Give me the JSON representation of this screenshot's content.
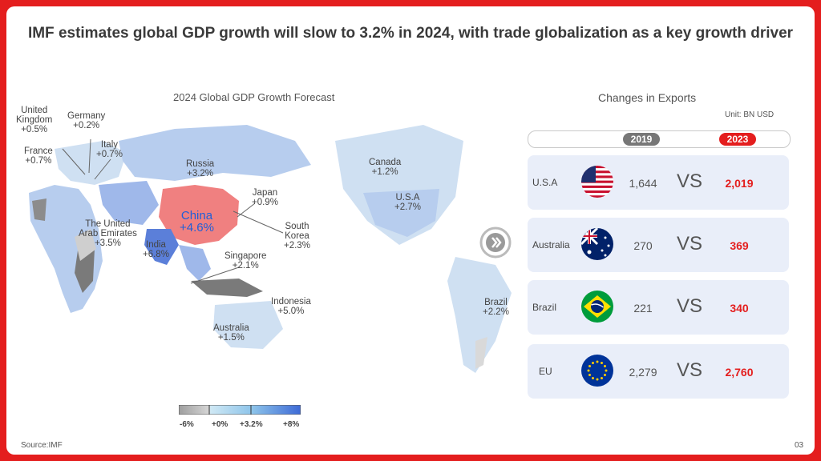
{
  "headline": "IMF estimates global GDP growth will slow to 3.2% in 2024, with trade globalization as a key growth driver",
  "map": {
    "title": "2024 Global GDP Growth Forecast",
    "labels": {
      "uk": "United\nKingdom\n+0.5%",
      "germany": "Germany\n+0.2%",
      "france": "France\n+0.7%",
      "italy": "Italy\n+0.7%",
      "russia": "Russia\n+3.2%",
      "japan": "Japan\n+0.9%",
      "china": "China\n+4.6%",
      "uae": "The United\nArab Emirates\n+3.5%",
      "india": "India\n+6.8%",
      "south_korea": "South\nKorea\n+2.3%",
      "singapore": "Singapore\n+2.1%",
      "indonesia": "Indonesia\n+5.0%",
      "australia": "Australia\n+1.5%",
      "canada": "Canada\n+1.2%",
      "usa": "U.S.A\n+2.7%",
      "brazil": "Brazil\n+2.2%"
    },
    "legend": [
      "-6%",
      "+0%",
      "+3.2%",
      "+8%"
    ],
    "colors": {
      "china": "#f08080",
      "high": "#5b7fd9",
      "mid": "#9fb8ea",
      "low": "#cfe0f2",
      "neg": "#8c8c8c"
    }
  },
  "exports": {
    "title": "Changes in Exports",
    "unit": "Unit: BN USD",
    "year_a": "2019",
    "year_b": "2023",
    "vs": "VS",
    "rows": [
      {
        "country": "U.S.A",
        "flag": "us-flag-icon",
        "v2019": "1,644",
        "v2023": "2,019"
      },
      {
        "country": "Australia",
        "flag": "australia-flag-icon",
        "v2019": "270",
        "v2023": "369"
      },
      {
        "country": "Brazil",
        "flag": "brazil-flag-icon",
        "v2019": "221",
        "v2023": "340"
      },
      {
        "country": "EU",
        "flag": "eu-flag-icon",
        "v2019": "2,279",
        "v2023": "2,760"
      }
    ]
  },
  "source": "Source:IMF",
  "page_number": "03",
  "accent": "#e41e1e"
}
